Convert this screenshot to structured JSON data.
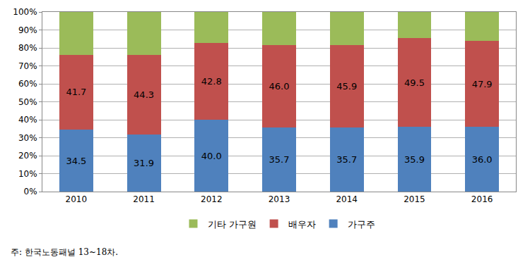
{
  "chart_data": {
    "type": "bar",
    "stacked": true,
    "categories": [
      "2010",
      "2011",
      "2012",
      "2013",
      "2014",
      "2015",
      "2016"
    ],
    "series": [
      {
        "name": "가구주",
        "color": "#4f81bd",
        "data_labels": true,
        "values": [
          34.5,
          31.9,
          40.0,
          35.7,
          35.7,
          35.9,
          36.0
        ],
        "value_labels": [
          "34.5",
          "31.9",
          "40.0",
          "35.7",
          "35.7",
          "35.9",
          "36.0"
        ]
      },
      {
        "name": "배우자",
        "color": "#c0504d",
        "data_labels": true,
        "values": [
          41.7,
          44.3,
          42.8,
          46.0,
          45.9,
          49.5,
          47.9
        ],
        "value_labels": [
          "41.7",
          "44.3",
          "42.8",
          "46.0",
          "45.9",
          "49.5",
          "47.9"
        ]
      },
      {
        "name": "기타 가구원",
        "color": "#9bbb59",
        "data_labels": false,
        "values": [
          23.8,
          23.8,
          17.2,
          18.3,
          18.4,
          14.6,
          16.1
        ]
      }
    ],
    "ylim": [
      0,
      100
    ],
    "yticks": [
      {
        "value": 0,
        "label": "0%"
      },
      {
        "value": 10,
        "label": "10%"
      },
      {
        "value": 20,
        "label": "20%"
      },
      {
        "value": 30,
        "label": "30%"
      },
      {
        "value": 40,
        "label": "40%"
      },
      {
        "value": 50,
        "label": "50%"
      },
      {
        "value": 60,
        "label": "60%"
      },
      {
        "value": 70,
        "label": "70%"
      },
      {
        "value": 80,
        "label": "80%"
      },
      {
        "value": 90,
        "label": "90%"
      },
      {
        "value": 100,
        "label": "100%"
      }
    ],
    "grid": true,
    "legend": "bottom",
    "annotation": "주: 한국노동패널 13~18차."
  }
}
